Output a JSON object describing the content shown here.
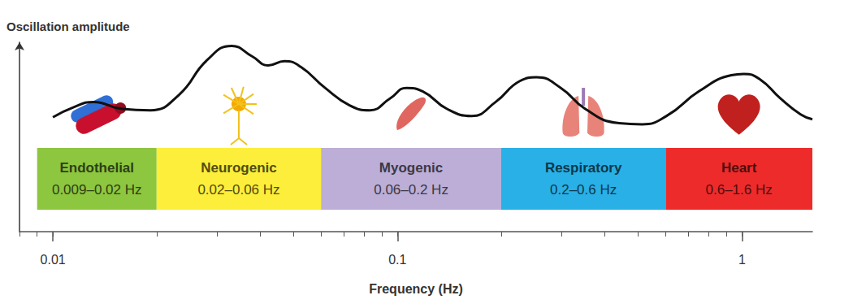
{
  "chart_data": {
    "type": "line",
    "ylabel": "Oscillation amplitude",
    "xlabel": "Frequency (Hz)",
    "log": "x",
    "grid": false,
    "tick_labels": "x",
    "color": "#111111",
    "xlim": [
      0.008,
      1.6
    ],
    "xticks": [
      0.01,
      0.1,
      1
    ],
    "ylim": [
      0,
      10
    ],
    "x": [
      0.01,
      0.01146,
      0.01312,
      0.01587,
      0.01919,
      0.02321,
      0.02806,
      0.03303,
      0.03784,
      0.04217,
      0.04702,
      0.0524,
      0.06166,
      0.07261,
      0.08318,
      0.09525,
      0.1062,
      0.1183,
      0.1393,
      0.164,
      0.1928,
      0.227,
      0.2531,
      0.2979,
      0.3508,
      0.4355,
      0.5129,
      0.6039,
      0.7499,
      0.9311,
      1.0115,
      1.128,
      1.291,
      1.479,
      1.6
    ],
    "values": [
      6.04,
      6.56,
      6.85,
      6.48,
      6.41,
      7.22,
      9.07,
      9.81,
      9.26,
      8.78,
      9.0,
      8.7,
      7.59,
      6.67,
      6.41,
      7.04,
      7.59,
      7.41,
      6.48,
      6.11,
      6.85,
      7.96,
      8.15,
      7.59,
      6.48,
      5.74,
      5.67,
      6.11,
      7.41,
      8.26,
      8.33,
      8.04,
      7.04,
      6.19,
      5.93
    ],
    "bands": [
      {
        "name": "Endothelial",
        "label": "0.009–0.02 Hz",
        "range": [
          0.009,
          0.02
        ],
        "color": "#8dc63f"
      },
      {
        "name": "Neurogenic",
        "label": "0.02–0.06 Hz",
        "range": [
          0.02,
          0.06
        ],
        "color": "#fcee3a"
      },
      {
        "name": "Myogenic",
        "label": "0.06–0.2 Hz",
        "range": [
          0.06,
          0.2
        ],
        "color": "#bcaed6"
      },
      {
        "name": "Respiratory",
        "label": "0.2–0.6 Hz",
        "range": [
          0.2,
          0.6
        ],
        "color": "#29b0e6"
      },
      {
        "name": "Heart",
        "label": "0.6–1.6 Hz",
        "range": [
          0.6,
          1.6
        ],
        "color": "#ee2b2b"
      }
    ]
  }
}
